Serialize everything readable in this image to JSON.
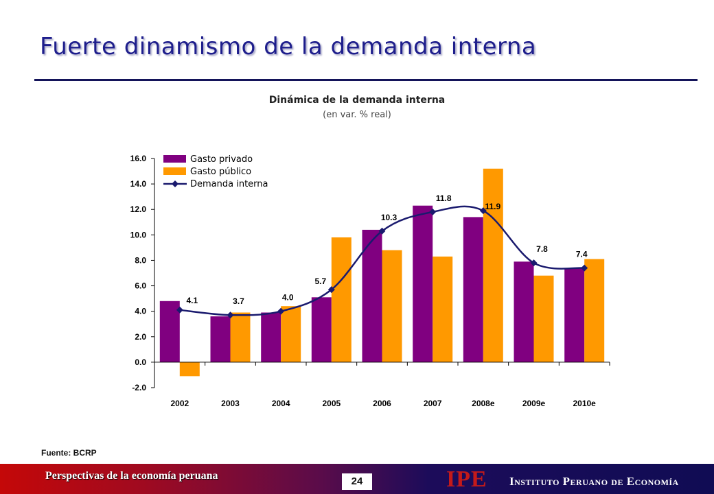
{
  "slide": {
    "title": "Fuerte dinamismo de la demanda interna",
    "source": "Fuente: BCRP",
    "footer_text": "Perspectivas de la economía peruana",
    "page_number": "24",
    "logo_text": "IPE",
    "institute_name": "Instituto Peruano de Economía"
  },
  "chart_data": {
    "type": "bar",
    "title": "Dinámica de la demanda interna",
    "subtitle": "(en var. % real)",
    "categories": [
      "2002",
      "2003",
      "2004",
      "2005",
      "2006",
      "2007",
      "2008e",
      "2009e",
      "2010e"
    ],
    "ylim": [
      -2.0,
      16.0
    ],
    "yticks": [
      "-2.0",
      "0.0",
      "2.0",
      "4.0",
      "6.0",
      "8.0",
      "10.0",
      "12.0",
      "14.0",
      "16.0"
    ],
    "legend_position": "top-left",
    "grid": false,
    "series": [
      {
        "name": "Gasto privado",
        "kind": "bar",
        "color": "#800080",
        "values": [
          4.8,
          3.6,
          3.9,
          5.1,
          10.4,
          12.3,
          11.4,
          7.9,
          7.4
        ]
      },
      {
        "name": "Gasto público",
        "kind": "bar",
        "color": "#ff9900",
        "values": [
          -1.1,
          3.9,
          4.4,
          9.8,
          8.8,
          8.3,
          15.2,
          6.8,
          8.1
        ]
      },
      {
        "name": "Demanda interna",
        "kind": "line",
        "color": "#1a1a6e",
        "values": [
          4.1,
          3.7,
          4.0,
          5.7,
          10.3,
          11.8,
          11.9,
          7.8,
          7.4
        ],
        "labels": [
          "4.1",
          "3.7",
          "4.0",
          "5.7",
          "10.3",
          "11.8",
          "11.9",
          "7.8",
          "7.4"
        ]
      }
    ]
  }
}
